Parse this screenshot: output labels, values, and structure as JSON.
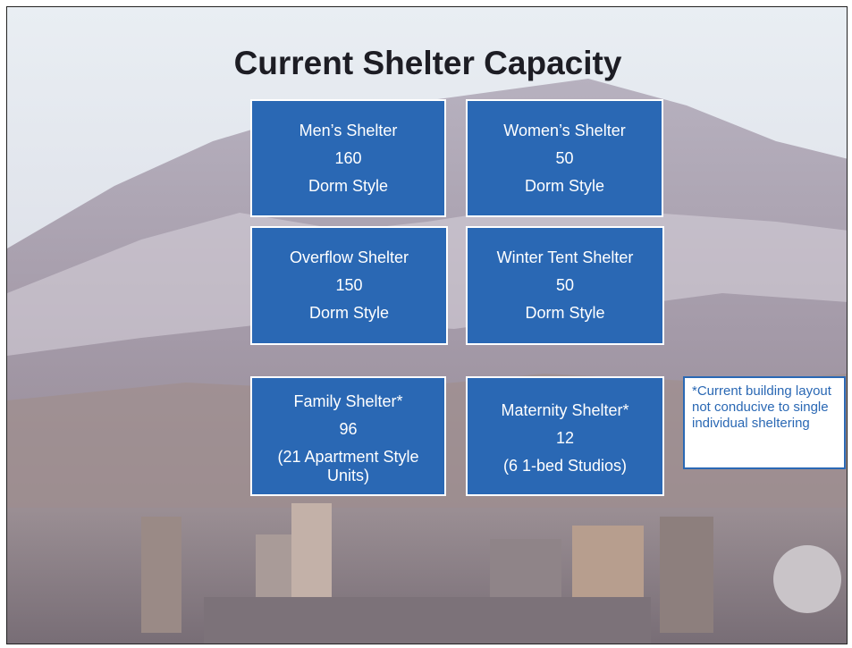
{
  "title": "Current Shelter Capacity",
  "boxes": [
    {
      "name": "Men’s Shelter",
      "capacity": 160,
      "detail": "Dorm Style"
    },
    {
      "name": "Women’s Shelter",
      "capacity": 50,
      "detail": "Dorm Style"
    },
    {
      "name": "Overflow Shelter",
      "capacity": 150,
      "detail": "Dorm Style"
    },
    {
      "name": "Winter Tent Shelter",
      "capacity": 50,
      "detail": "Dorm Style"
    },
    {
      "name": "Family Shelter*",
      "capacity": 96,
      "detail": "(21 Apartment Style Units)"
    },
    {
      "name": "Maternity Shelter*",
      "capacity": 12,
      "detail": "(6 1-bed Studios)"
    }
  ],
  "note": "*Current building layout not conducive to single individual sheltering"
}
